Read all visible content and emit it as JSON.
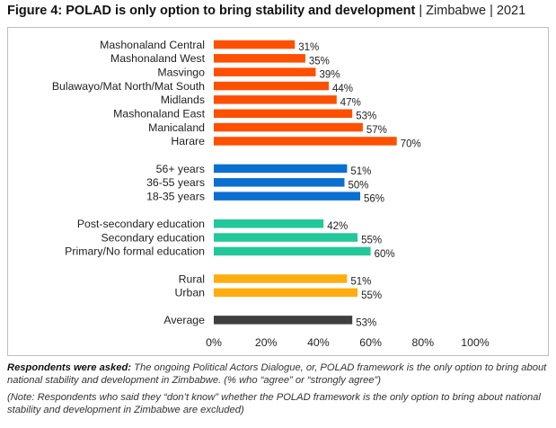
{
  "header": {
    "title_bold": "Figure 4: POLAD is only option to bring stability and development",
    "title_rest": " | Zimbabwe | 2021"
  },
  "footnote": {
    "question_label": "Respondents were asked:",
    "question_text": " The ongoing Political Actors Dialogue, or, POLAD framework is the only option to bring about national stability and development in Zimbabwe. (% who “agree” or “strongly agree”)",
    "note": "(Note: Respondents who said they “don’t know” whether the POLAD framework is the only option to bring about national stability and development in Zimbabwe are excluded)"
  },
  "chart_data": {
    "type": "bar",
    "orientation": "horizontal",
    "xlim": [
      0,
      100
    ],
    "xticks": [
      "0%",
      "20%",
      "40%",
      "60%",
      "80%",
      "100%"
    ],
    "value_suffix": "%",
    "groups": [
      {
        "color": "#ff4f00",
        "bars": [
          {
            "label": "Mashonaland Central",
            "value": 31
          },
          {
            "label": "Mashonaland West",
            "value": 35
          },
          {
            "label": "Masvingo",
            "value": 39
          },
          {
            "label": "Bulawayo/Mat North/Mat South",
            "value": 44
          },
          {
            "label": "Midlands",
            "value": 47
          },
          {
            "label": "Mashonaland East",
            "value": 53
          },
          {
            "label": "Manicaland",
            "value": 57
          },
          {
            "label": "Harare",
            "value": 70
          }
        ]
      },
      {
        "color": "#0a6fd0",
        "bars": [
          {
            "label": "56+ years",
            "value": 51
          },
          {
            "label": "36-55 years",
            "value": 50
          },
          {
            "label": "18-35 years",
            "value": 56
          }
        ]
      },
      {
        "color": "#22c79a",
        "bars": [
          {
            "label": "Post-secondary education",
            "value": 42
          },
          {
            "label": "Secondary education",
            "value": 55
          },
          {
            "label": "Primary/No formal education",
            "value": 60
          }
        ]
      },
      {
        "color": "#ffad10",
        "bars": [
          {
            "label": "Rural",
            "value": 51
          },
          {
            "label": "Urban",
            "value": 55
          }
        ]
      },
      {
        "color": "#3f3f3f",
        "bars": [
          {
            "label": "Average",
            "value": 53
          }
        ]
      }
    ]
  }
}
